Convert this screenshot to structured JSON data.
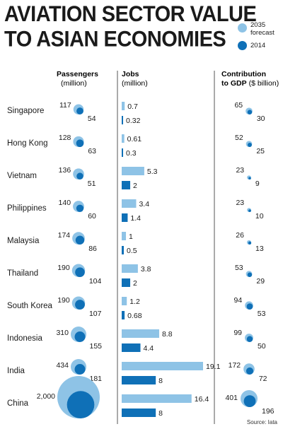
{
  "title_line1": "AVIATION SECTOR VALUE",
  "title_line2": "TO ASIAN ECONOMIES",
  "legend": {
    "forecast_label_line1": "2035",
    "forecast_label_line2": "forecast",
    "current_label": "2014"
  },
  "colors": {
    "forecast": "#8ec3e6",
    "current": "#0f70b7",
    "divider": "#555555"
  },
  "columns": {
    "passengers": {
      "title": "Passengers",
      "unit": "(million)"
    },
    "jobs": {
      "title": "Jobs",
      "unit": "(million)"
    },
    "gdp": {
      "title_line1": "Contribution",
      "title_line2": "to GDP",
      "unit": "($ billion)"
    }
  },
  "source": "Source: Iata",
  "chart_data": [
    {
      "type": "bubble",
      "title": "Passengers",
      "unit": "(million)",
      "categories": [
        "Singapore",
        "Hong Kong",
        "Vietnam",
        "Philippines",
        "Malaysia",
        "Thailand",
        "South Korea",
        "Indonesia",
        "India",
        "China"
      ],
      "series": [
        {
          "name": "2035 forecast",
          "values": [
            117,
            128,
            136,
            140,
            174,
            190,
            190,
            310,
            434,
            2000
          ],
          "labels": [
            "117",
            "128",
            "136",
            "140",
            "174",
            "190",
            "190",
            "310",
            "434",
            "2,000"
          ]
        },
        {
          "name": "2014",
          "values": [
            54,
            63,
            51,
            60,
            86,
            104,
            107,
            155,
            181,
            832
          ],
          "labels": [
            "54",
            "63",
            "51",
            "60",
            "86",
            "104",
            "107",
            "155",
            "181",
            "832"
          ]
        }
      ]
    },
    {
      "type": "bar",
      "title": "Jobs",
      "unit": "(million)",
      "categories": [
        "Singapore",
        "Hong Kong",
        "Vietnam",
        "Philippines",
        "Malaysia",
        "Thailand",
        "South Korea",
        "Indonesia",
        "India",
        "China"
      ],
      "series": [
        {
          "name": "2035 forecast",
          "values": [
            0.7,
            0.61,
            5.3,
            3.4,
            1,
            3.8,
            1.2,
            8.8,
            19.1,
            16.4
          ],
          "labels": [
            "0.7",
            "0.61",
            "5.3",
            "3.4",
            "1",
            "3.8",
            "1.2",
            "8.8",
            "19.1",
            "16.4"
          ]
        },
        {
          "name": "2014",
          "values": [
            0.32,
            0.3,
            2,
            1.4,
            0.5,
            2,
            0.68,
            4.4,
            8,
            8
          ],
          "labels": [
            "0.32",
            "0.3",
            "2",
            "1.4",
            "0.5",
            "2",
            "0.68",
            "4.4",
            "8",
            "8"
          ]
        }
      ]
    },
    {
      "type": "bubble",
      "title": "Contribution to GDP",
      "unit": "($ billion)",
      "categories": [
        "Singapore",
        "Hong Kong",
        "Vietnam",
        "Philippines",
        "Malaysia",
        "Thailand",
        "South Korea",
        "Indonesia",
        "India",
        "China"
      ],
      "series": [
        {
          "name": "2035 forecast",
          "values": [
            65,
            52,
            23,
            23,
            26,
            53,
            94,
            99,
            172,
            401
          ],
          "labels": [
            "65",
            "52",
            "23",
            "23",
            "26",
            "53",
            "94",
            "99",
            "172",
            "401"
          ]
        },
        {
          "name": "2014",
          "values": [
            30,
            25,
            9,
            10,
            13,
            29,
            53,
            50,
            72,
            196
          ],
          "labels": [
            "30",
            "25",
            "9",
            "10",
            "13",
            "29",
            "53",
            "50",
            "72",
            "196"
          ]
        }
      ]
    }
  ]
}
